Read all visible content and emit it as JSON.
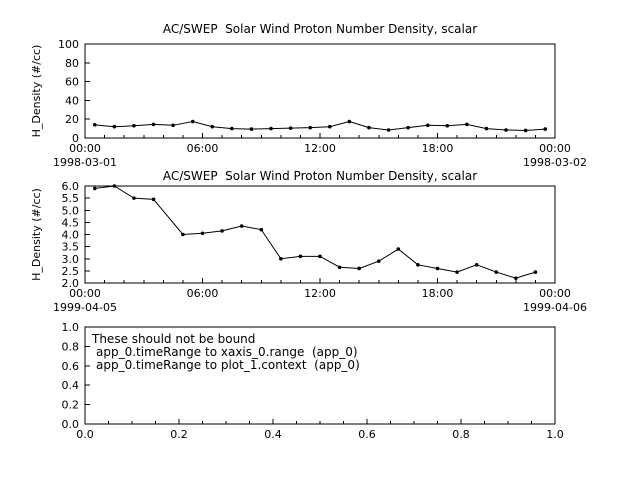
{
  "app": {
    "background": "#ffffff",
    "foreground": "#000000"
  },
  "chart_data": [
    {
      "type": "line",
      "title": "AC/SWEP  Solar Wind Proton Number Density, scalar",
      "ylabel": "H_Density (#/cc)",
      "xlim": [
        0,
        24
      ],
      "ylim": [
        0,
        100
      ],
      "y_ticks": [
        "0",
        "20",
        "40",
        "60",
        "80",
        "100"
      ],
      "y_tick_values": [
        0,
        20,
        40,
        60,
        80,
        100
      ],
      "x_ticks": [
        "00:00",
        "06:00",
        "12:00",
        "18:00",
        "00:00"
      ],
      "x_tick_values": [
        0,
        6,
        12,
        18,
        24
      ],
      "x_start_date": "1998-03-01",
      "x_end_date": "1998-03-02",
      "grid": false,
      "marker": "circle",
      "line_color": "#000000",
      "x": [
        0.5,
        1.5,
        2.5,
        3.5,
        4.5,
        5.5,
        6.5,
        7.5,
        8.5,
        9.5,
        10.5,
        11.5,
        12.5,
        13.5,
        14.5,
        15.5,
        16.5,
        17.5,
        18.5,
        19.5,
        20.5,
        21.5,
        22.5,
        23.5
      ],
      "values": [
        14,
        12,
        13,
        14.5,
        13.5,
        17.5,
        12,
        10,
        9.5,
        10,
        10.5,
        11,
        12,
        17.5,
        11,
        8.5,
        11,
        13.5,
        13,
        14.5,
        10,
        8.5,
        8,
        9.5
      ]
    },
    {
      "type": "line",
      "title": "AC/SWEP  Solar Wind Proton Number Density, scalar",
      "ylabel": "H_Density (#/cc)",
      "xlim": [
        0,
        24
      ],
      "ylim": [
        2.0,
        6.0
      ],
      "y_ticks": [
        "2.0",
        "2.5",
        "3.0",
        "3.5",
        "4.0",
        "4.5",
        "5.0",
        "5.5",
        "6.0"
      ],
      "y_tick_values": [
        2.0,
        2.5,
        3.0,
        3.5,
        4.0,
        4.5,
        5.0,
        5.5,
        6.0
      ],
      "x_ticks": [
        "00:00",
        "06:00",
        "12:00",
        "18:00",
        "00:00"
      ],
      "x_tick_values": [
        0,
        6,
        12,
        18,
        24
      ],
      "x_start_date": "1999-04-05",
      "x_end_date": "1999-04-06",
      "grid": false,
      "marker": "circle",
      "line_color": "#000000",
      "x": [
        0.5,
        1.5,
        2.5,
        3.5,
        5,
        6,
        7,
        8,
        9,
        10,
        11,
        12,
        13,
        14,
        15,
        16,
        17,
        18,
        19,
        20,
        21,
        22,
        23
      ],
      "values": [
        5.9,
        6.0,
        5.5,
        5.45,
        4.0,
        4.05,
        4.15,
        4.35,
        4.2,
        3.0,
        3.1,
        3.1,
        2.65,
        2.6,
        2.9,
        3.4,
        2.75,
        2.6,
        2.45,
        2.75,
        2.45,
        2.2,
        2.45
      ]
    },
    {
      "type": "empty",
      "title": "",
      "annotations": [
        "These should not be bound",
        "app_0.timeRange to xaxis_0.range  (app_0)",
        "app_0.timeRange to plot_1.context  (app_0)"
      ],
      "xlim": [
        0,
        1
      ],
      "ylim": [
        0,
        1
      ],
      "y_ticks": [
        "0.0",
        "0.2",
        "0.4",
        "0.6",
        "0.8",
        "1.0"
      ],
      "y_tick_values": [
        0,
        0.2,
        0.4,
        0.6,
        0.8,
        1.0
      ],
      "x_ticks": [
        "0.0",
        "0.2",
        "0.4",
        "0.6",
        "0.8",
        "1.0"
      ],
      "x_tick_values": [
        0,
        0.2,
        0.4,
        0.6,
        0.8,
        1.0
      ],
      "grid": false
    }
  ]
}
